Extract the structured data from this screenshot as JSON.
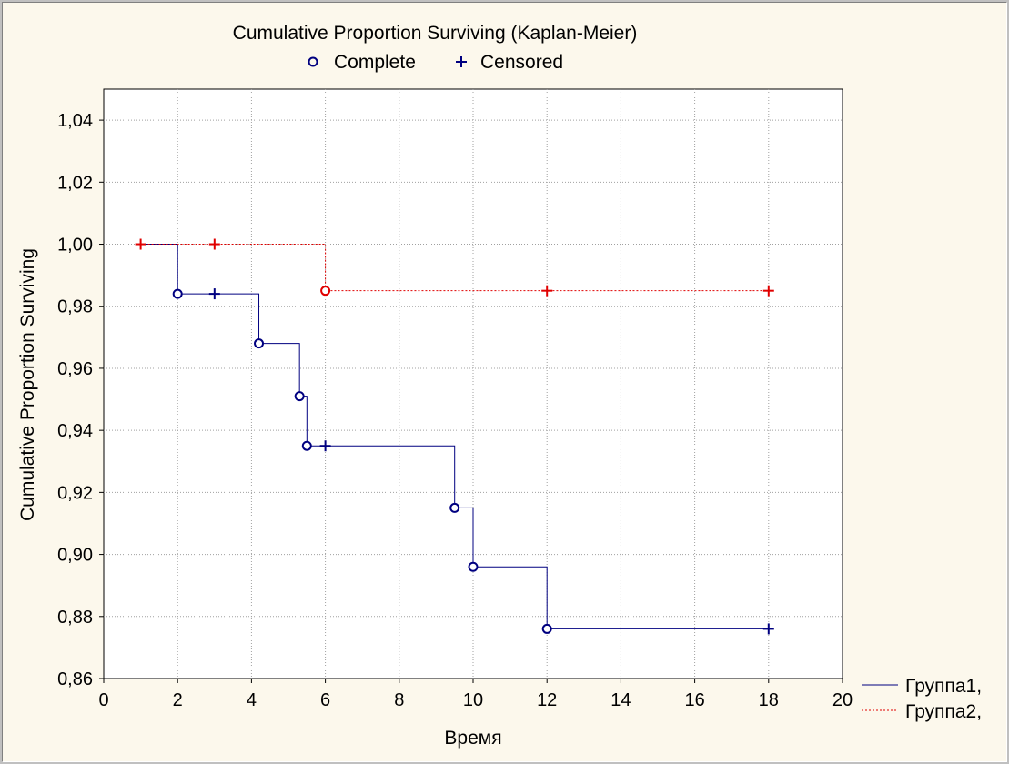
{
  "chart_data": {
    "type": "line",
    "title": "Cumulative Proportion Surviving (Kaplan-Meier)",
    "marker_legend": [
      {
        "label": "Complete",
        "marker": "circle"
      },
      {
        "label": "Censored",
        "marker": "plus"
      }
    ],
    "xlabel": "Время",
    "ylabel": "Cumulative Proportion Surviving",
    "xlim": [
      0,
      20
    ],
    "ylim": [
      0.86,
      1.05
    ],
    "x_ticks": [
      0,
      2,
      4,
      6,
      8,
      10,
      12,
      14,
      16,
      18,
      20
    ],
    "x_tick_labels": [
      "0",
      "2",
      "4",
      "6",
      "8",
      "10",
      "12",
      "14",
      "16",
      "18",
      "20"
    ],
    "y_ticks": [
      0.86,
      0.88,
      0.9,
      0.92,
      0.94,
      0.96,
      0.98,
      1.0,
      1.02,
      1.04
    ],
    "y_tick_labels": [
      "0,86",
      "0,88",
      "0,90",
      "0,92",
      "0,94",
      "0,96",
      "0,98",
      "1,00",
      "1,02",
      "1,04"
    ],
    "grid": true,
    "legend_position": "bottom-right",
    "series": [
      {
        "name": "Группа1,",
        "color": "#000080",
        "line_style": "solid",
        "steps": [
          [
            1,
            1.0
          ],
          [
            2,
            0.984
          ],
          [
            4.2,
            0.968
          ],
          [
            5.3,
            0.951
          ],
          [
            5.5,
            0.935
          ],
          [
            9.5,
            0.915
          ],
          [
            10,
            0.896
          ],
          [
            12,
            0.876
          ],
          [
            18,
            0.876
          ]
        ],
        "complete": [
          [
            2,
            0.984
          ],
          [
            4.2,
            0.968
          ],
          [
            5.3,
            0.951
          ],
          [
            5.5,
            0.935
          ],
          [
            9.5,
            0.915
          ],
          [
            10,
            0.896
          ],
          [
            12,
            0.876
          ]
        ],
        "censored": [
          [
            3,
            0.984
          ],
          [
            6,
            0.935
          ],
          [
            18,
            0.876
          ]
        ]
      },
      {
        "name": "Группа2,",
        "color": "#e00000",
        "line_style": "dotted",
        "steps": [
          [
            1,
            1.0
          ],
          [
            6,
            0.985
          ],
          [
            18,
            0.985
          ]
        ],
        "complete": [
          [
            6,
            0.985
          ]
        ],
        "censored": [
          [
            1,
            1.0
          ],
          [
            3,
            1.0
          ],
          [
            12,
            0.985
          ],
          [
            18,
            0.985
          ]
        ]
      }
    ]
  }
}
